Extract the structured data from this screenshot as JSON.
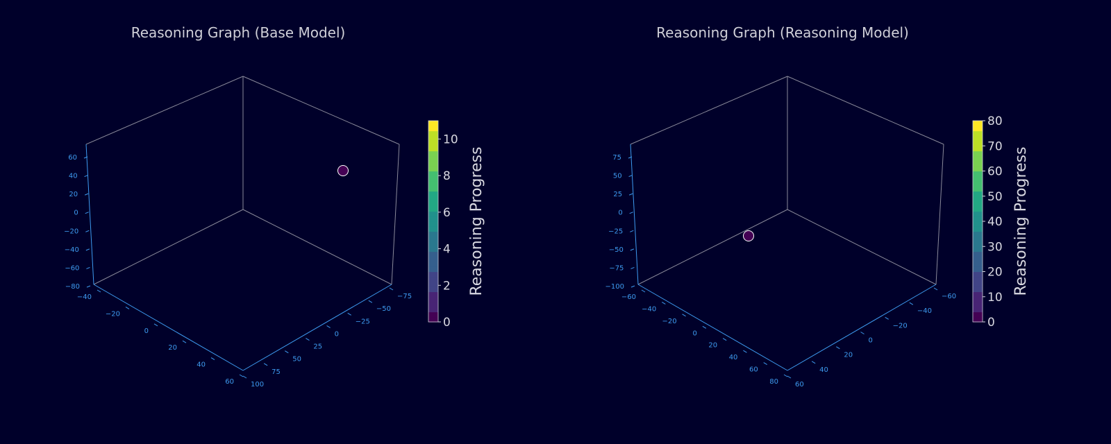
{
  "chart_data": [
    {
      "type": "scatter3d",
      "title": "Reasoning Graph (Base Model)",
      "x_ticks": [
        "−40",
        "−20",
        "0",
        "20",
        "40",
        "60"
      ],
      "y_ticks": [
        "−75",
        "−50",
        "−25",
        "0",
        "25",
        "50",
        "75",
        "100"
      ],
      "z_ticks": [
        "−80",
        "−60",
        "−40",
        "−20",
        "0",
        "20",
        "40",
        "60"
      ],
      "points": [
        {
          "x": -20,
          "y": -90,
          "z": 45,
          "progress": 0
        }
      ],
      "colorbar": {
        "label": "Reasoning Progress",
        "min": 0,
        "max": 11,
        "ticks": [
          "0",
          "2",
          "4",
          "6",
          "8",
          "10"
        ]
      }
    },
    {
      "type": "scatter3d",
      "title": "Reasoning Graph (Reasoning Model)",
      "x_ticks": [
        "−60",
        "−40",
        "−20",
        "0",
        "20",
        "40",
        "60",
        "80"
      ],
      "y_ticks": [
        "−60",
        "−40",
        "−20",
        "0",
        "20",
        "40",
        "60"
      ],
      "z_ticks": [
        "−100",
        "−75",
        "−50",
        "−25",
        "0",
        "25",
        "50",
        "75"
      ],
      "points": [
        {
          "x": -30,
          "y": -25,
          "z": -10,
          "progress": 0
        }
      ],
      "colorbar": {
        "label": "Reasoning Progress",
        "min": 0,
        "max": 80,
        "ticks": [
          "0",
          "10",
          "20",
          "30",
          "40",
          "50",
          "60",
          "70",
          "80"
        ]
      }
    }
  ]
}
